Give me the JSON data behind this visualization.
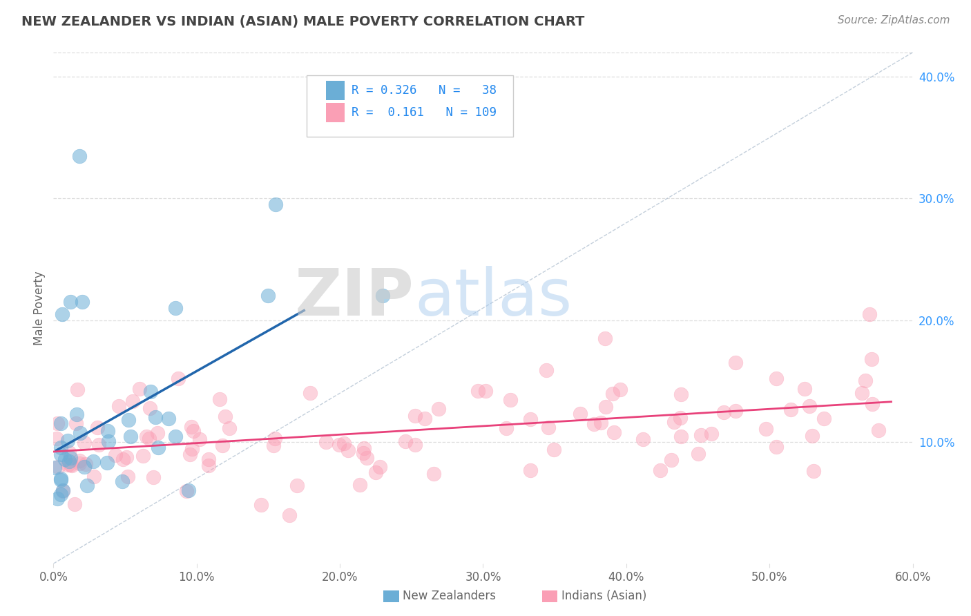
{
  "title": "NEW ZEALANDER VS INDIAN (ASIAN) MALE POVERTY CORRELATION CHART",
  "source": "Source: ZipAtlas.com",
  "ylabel": "Male Poverty",
  "xlim": [
    0.0,
    0.6
  ],
  "ylim": [
    0.0,
    0.42
  ],
  "xtick_labels": [
    "0.0%",
    "10.0%",
    "20.0%",
    "30.0%",
    "40.0%",
    "50.0%",
    "60.0%"
  ],
  "xtick_vals": [
    0.0,
    0.1,
    0.2,
    0.3,
    0.4,
    0.5,
    0.6
  ],
  "ytick_labels": [
    "10.0%",
    "20.0%",
    "30.0%",
    "40.0%"
  ],
  "ytick_vals": [
    0.1,
    0.2,
    0.3,
    0.4
  ],
  "nz_R": 0.326,
  "nz_N": 38,
  "ind_R": 0.161,
  "ind_N": 109,
  "nz_color": "#6baed6",
  "ind_color": "#fa9fb5",
  "nz_line_color": "#2166ac",
  "ind_line_color": "#e8417a",
  "diagonal_color": "#aaaacc",
  "watermark_zip": "ZIP",
  "watermark_atlas": "atlas",
  "background_color": "#ffffff",
  "grid_color": "#dddddd",
  "title_color": "#444444",
  "source_color": "#888888",
  "label_color": "#666666",
  "tick_color": "#3399ff",
  "legend_label1": "R = 0.326   N =   38",
  "legend_label2": "R =  0.161   N = 109",
  "bottom_label1": "New Zealanders",
  "bottom_label2": "Indians (Asian)"
}
